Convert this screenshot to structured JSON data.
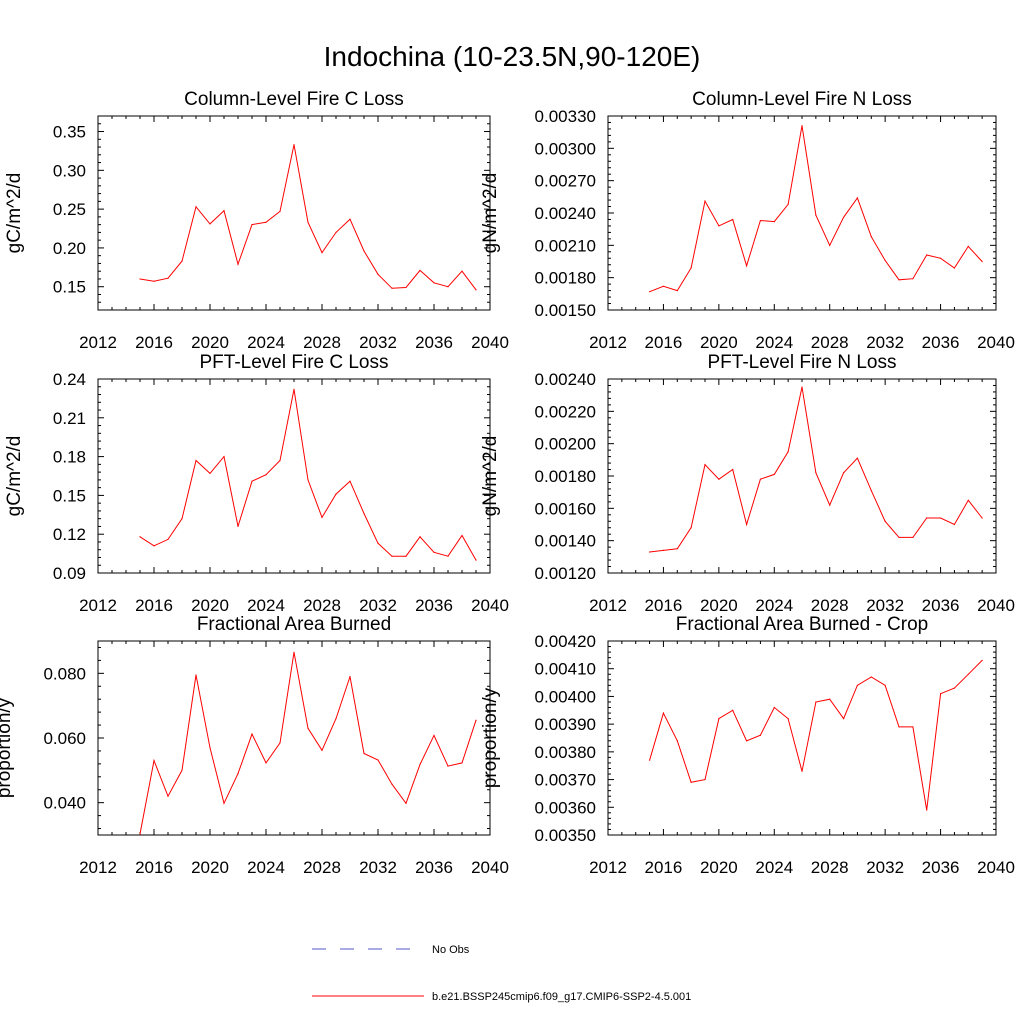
{
  "figure_title": "Indochina (10-23.5N,90-120E)",
  "legend": {
    "entries": [
      {
        "label": "No Obs",
        "color": "#5555cc",
        "style": "dashed"
      },
      {
        "label": "b.e21.BSSP245cmip6.f09_g17.CMIP6-SSP2-4.5.001",
        "color": "#ff0000",
        "style": "solid"
      }
    ]
  },
  "chart_data": [
    {
      "type": "line",
      "title": "Column-Level Fire C Loss",
      "xlabel": "",
      "ylabel": "gC/m^2/d",
      "xlim": [
        2012,
        2040
      ],
      "ylim": [
        0.12,
        0.37
      ],
      "xticks": [
        2012,
        2016,
        2020,
        2024,
        2028,
        2032,
        2036,
        2040
      ],
      "xtick_labels": [
        "2012",
        "2016",
        "2020",
        "2024",
        "2028",
        "2032",
        "2036",
        "2040"
      ],
      "yticks": [
        0.15,
        0.2,
        0.25,
        0.3,
        0.35
      ],
      "ytick_labels": [
        "0.15",
        "0.20",
        "0.25",
        "0.30",
        "0.35"
      ],
      "series": [
        {
          "color": "#ff0000",
          "x": [
            2015,
            2016,
            2017,
            2018,
            2019,
            2020,
            2021,
            2022,
            2023,
            2024,
            2025,
            2026,
            2027,
            2028,
            2029,
            2030,
            2031,
            2032,
            2033,
            2034,
            2035,
            2036,
            2037,
            2038,
            2039
          ],
          "values": [
            0.16,
            0.157,
            0.161,
            0.183,
            0.253,
            0.231,
            0.248,
            0.179,
            0.23,
            0.233,
            0.247,
            0.333,
            0.233,
            0.194,
            0.22,
            0.237,
            0.196,
            0.166,
            0.148,
            0.149,
            0.171,
            0.155,
            0.15,
            0.17,
            0.146
          ]
        }
      ]
    },
    {
      "type": "line",
      "title": "Column-Level Fire N Loss",
      "xlabel": "",
      "ylabel": "gN/m^2/d",
      "xlim": [
        2012,
        2040
      ],
      "ylim": [
        0.0015,
        0.0033
      ],
      "xticks": [
        2012,
        2016,
        2020,
        2024,
        2028,
        2032,
        2036,
        2040
      ],
      "xtick_labels": [
        "2012",
        "2016",
        "2020",
        "2024",
        "2028",
        "2032",
        "2036",
        "2040"
      ],
      "yticks": [
        0.0015,
        0.0018,
        0.0021,
        0.0024,
        0.0027,
        0.003,
        0.0033
      ],
      "ytick_labels": [
        "0.00150",
        "0.00180",
        "0.00210",
        "0.00240",
        "0.00270",
        "0.00300",
        "0.00330"
      ],
      "series": [
        {
          "color": "#ff0000",
          "x": [
            2015,
            2016,
            2017,
            2018,
            2019,
            2020,
            2021,
            2022,
            2023,
            2024,
            2025,
            2026,
            2027,
            2028,
            2029,
            2030,
            2031,
            2032,
            2033,
            2034,
            2035,
            2036,
            2037,
            2038,
            2039
          ],
          "values": [
            0.00167,
            0.00172,
            0.00168,
            0.00189,
            0.00251,
            0.00228,
            0.00234,
            0.00191,
            0.00233,
            0.00232,
            0.00248,
            0.00321,
            0.00238,
            0.0021,
            0.00236,
            0.00254,
            0.00218,
            0.00196,
            0.00178,
            0.00179,
            0.00201,
            0.00198,
            0.00189,
            0.00209,
            0.00195
          ]
        }
      ]
    },
    {
      "type": "line",
      "title": "PFT-Level Fire C Loss",
      "xlabel": "",
      "ylabel": "gC/m^2/d",
      "xlim": [
        2012,
        2040
      ],
      "ylim": [
        0.09,
        0.24
      ],
      "xticks": [
        2012,
        2016,
        2020,
        2024,
        2028,
        2032,
        2036,
        2040
      ],
      "xtick_labels": [
        "2012",
        "2016",
        "2020",
        "2024",
        "2028",
        "2032",
        "2036",
        "2040"
      ],
      "yticks": [
        0.09,
        0.12,
        0.15,
        0.18,
        0.21,
        0.24
      ],
      "ytick_labels": [
        "0.09",
        "0.12",
        "0.15",
        "0.18",
        "0.21",
        "0.24"
      ],
      "series": [
        {
          "color": "#ff0000",
          "x": [
            2015,
            2016,
            2017,
            2018,
            2019,
            2020,
            2021,
            2022,
            2023,
            2024,
            2025,
            2026,
            2027,
            2028,
            2029,
            2030,
            2031,
            2032,
            2033,
            2034,
            2035,
            2036,
            2037,
            2038,
            2039
          ],
          "values": [
            0.118,
            0.111,
            0.116,
            0.132,
            0.177,
            0.167,
            0.18,
            0.126,
            0.161,
            0.166,
            0.177,
            0.232,
            0.162,
            0.133,
            0.151,
            0.161,
            0.136,
            0.113,
            0.103,
            0.103,
            0.118,
            0.106,
            0.103,
            0.119,
            0.1
          ]
        }
      ]
    },
    {
      "type": "line",
      "title": "PFT-Level Fire N Loss",
      "xlabel": "",
      "ylabel": "gN/m^2/d",
      "xlim": [
        2012,
        2040
      ],
      "ylim": [
        0.0012,
        0.0024
      ],
      "xticks": [
        2012,
        2016,
        2020,
        2024,
        2028,
        2032,
        2036,
        2040
      ],
      "xtick_labels": [
        "2012",
        "2016",
        "2020",
        "2024",
        "2028",
        "2032",
        "2036",
        "2040"
      ],
      "yticks": [
        0.0012,
        0.0014,
        0.0016,
        0.0018,
        0.002,
        0.0022,
        0.0024
      ],
      "ytick_labels": [
        "0.00120",
        "0.00140",
        "0.00160",
        "0.00180",
        "0.00200",
        "0.00220",
        "0.00240"
      ],
      "series": [
        {
          "color": "#ff0000",
          "x": [
            2015,
            2016,
            2017,
            2018,
            2019,
            2020,
            2021,
            2022,
            2023,
            2024,
            2025,
            2026,
            2027,
            2028,
            2029,
            2030,
            2031,
            2032,
            2033,
            2034,
            2035,
            2036,
            2037,
            2038,
            2039
          ],
          "values": [
            0.00133,
            0.00134,
            0.00135,
            0.00148,
            0.00187,
            0.00178,
            0.00184,
            0.0015,
            0.00178,
            0.00181,
            0.00195,
            0.00235,
            0.00182,
            0.00162,
            0.00182,
            0.00191,
            0.00171,
            0.00152,
            0.00142,
            0.00142,
            0.00154,
            0.00154,
            0.0015,
            0.00165,
            0.00154
          ]
        }
      ]
    },
    {
      "type": "line",
      "title": "Fractional Area Burned",
      "xlabel": "",
      "ylabel": "proportion/y",
      "xlim": [
        2012,
        2040
      ],
      "ylim": [
        0.03,
        0.09
      ],
      "xticks": [
        2012,
        2016,
        2020,
        2024,
        2028,
        2032,
        2036,
        2040
      ],
      "xtick_labels": [
        "2012",
        "2016",
        "2020",
        "2024",
        "2028",
        "2032",
        "2036",
        "2040"
      ],
      "yticks": [
        0.04,
        0.06,
        0.08
      ],
      "ytick_labels": [
        "0.040",
        "0.060",
        "0.080"
      ],
      "series": [
        {
          "color": "#ff0000",
          "x": [
            2015,
            2016,
            2017,
            2018,
            2019,
            2020,
            2021,
            2022,
            2023,
            2024,
            2025,
            2026,
            2027,
            2028,
            2029,
            2030,
            2031,
            2032,
            2033,
            2034,
            2035,
            2036,
            2037,
            2038,
            2039
          ],
          "values": [
            0.0303,
            0.053,
            0.042,
            0.05,
            0.0795,
            0.057,
            0.0398,
            0.049,
            0.0612,
            0.0523,
            0.0585,
            0.0865,
            0.063,
            0.0562,
            0.066,
            0.079,
            0.0552,
            0.0532,
            0.0457,
            0.0398,
            0.0518,
            0.0608,
            0.0513,
            0.0523,
            0.0655
          ]
        }
      ]
    },
    {
      "type": "line",
      "title": "Fractional Area Burned - Crop",
      "xlabel": "",
      "ylabel": "proportion/y",
      "xlim": [
        2012,
        2040
      ],
      "ylim": [
        0.0035,
        0.0042
      ],
      "xticks": [
        2012,
        2016,
        2020,
        2024,
        2028,
        2032,
        2036,
        2040
      ],
      "xtick_labels": [
        "2012",
        "2016",
        "2020",
        "2024",
        "2028",
        "2032",
        "2036",
        "2040"
      ],
      "yticks": [
        0.0035,
        0.0036,
        0.0037,
        0.0038,
        0.0039,
        0.004,
        0.0041,
        0.0042
      ],
      "ytick_labels": [
        "0.00350",
        "0.00360",
        "0.00370",
        "0.00380",
        "0.00390",
        "0.00400",
        "0.00410",
        "0.00420"
      ],
      "series": [
        {
          "color": "#ff0000",
          "x": [
            2015,
            2016,
            2017,
            2018,
            2019,
            2020,
            2021,
            2022,
            2023,
            2024,
            2025,
            2026,
            2027,
            2028,
            2029,
            2030,
            2031,
            2032,
            2033,
            2034,
            2035,
            2036,
            2037,
            2038,
            2039
          ],
          "values": [
            0.00377,
            0.00394,
            0.00384,
            0.00369,
            0.0037,
            0.00392,
            0.00395,
            0.00384,
            0.00386,
            0.00396,
            0.00392,
            0.00373,
            0.00398,
            0.00399,
            0.00392,
            0.00404,
            0.00407,
            0.00404,
            0.00389,
            0.00389,
            0.00359,
            0.00401,
            0.00403,
            0.00408,
            0.00413
          ]
        }
      ]
    }
  ]
}
